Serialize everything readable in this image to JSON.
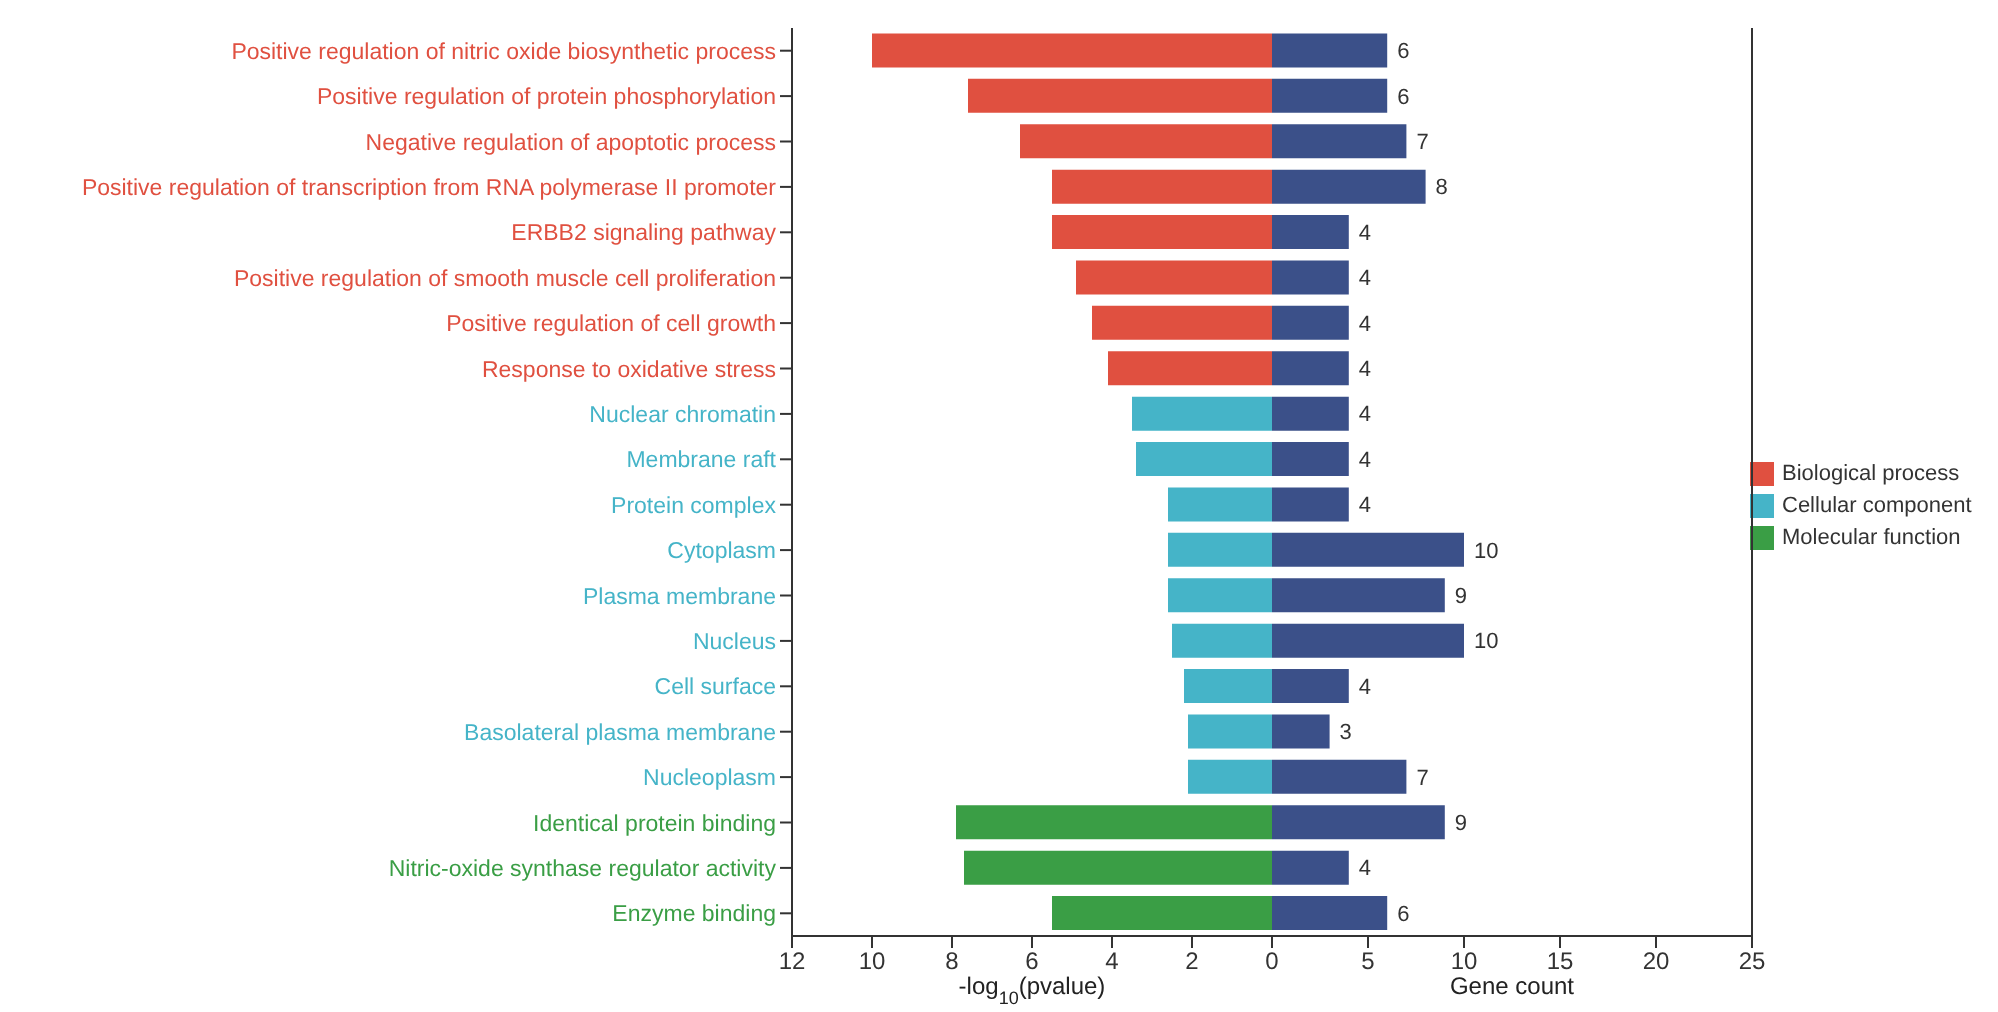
{
  "chart_data": [
    {
      "type": "bar",
      "orientation": "horizontal",
      "stacked": true,
      "xlabel": "-log$_{10}$(pvalue)",
      "xlim": [
        12,
        0
      ],
      "xticks": [
        12,
        10,
        8,
        6,
        4,
        2,
        {
          "value": 0,
          "label": null
        }
      ],
      "legend": "right",
      "categories": [
        "Positive regulation of nitric oxide biosynthetic process",
        "Positive regulation of protein phosphorylation",
        "Negative regulation of apoptotic process",
        "Positive regulation of transcription from RNA polymerase II promoter",
        "ERBB2 signaling pathway",
        "Positive regulation of smooth muscle cell proliferation",
        "Positive regulation of cell growth",
        "Response to oxidative stress",
        "Nuclear chromatin",
        "Membrane raft",
        "Protein complex",
        "Cytoplasm",
        "Plasma membrane",
        "Nucleus",
        "Cell surface",
        "Basolateral plasma membrane",
        "Nucleoplasm",
        "Identical protein binding",
        "Nitric-oxide synthase regulator activity",
        "Enzyme binding"
      ],
      "series": [
        {
          "name": "Biological process",
          "color": "#e05040",
          "values": [
            10.0,
            7.6,
            6.3,
            5.5,
            5.5,
            4.9,
            4.5,
            4.1,
            null,
            null,
            null,
            null,
            null,
            null,
            null,
            null,
            null,
            null,
            null,
            null
          ]
        },
        {
          "name": "Cellular component",
          "color": "#45b4c8",
          "values": [
            null,
            null,
            null,
            null,
            null,
            null,
            null,
            null,
            3.5,
            3.4,
            2.6,
            2.6,
            2.6,
            2.5,
            2.2,
            2.1,
            2.1,
            null,
            null,
            null
          ]
        },
        {
          "name": "Molecular function",
          "color": "#3a9e45",
          "values": [
            null,
            null,
            null,
            null,
            null,
            null,
            null,
            null,
            null,
            null,
            null,
            null,
            null,
            null,
            null,
            null,
            null,
            7.9,
            7.7,
            5.5
          ]
        }
      ]
    },
    {
      "type": "bar",
      "orientation": "horizontal",
      "xlabel": "Gene count",
      "xlim": [
        0,
        25
      ],
      "xticks": [
        0,
        5,
        10,
        15,
        20,
        25
      ],
      "tick_labels": "x",
      "data_labels": true,
      "color": "#3b5089",
      "categories": [
        null,
        null,
        null,
        null,
        null,
        null,
        null,
        null,
        null,
        null,
        null,
        null,
        null,
        null,
        null,
        null,
        null,
        null,
        null,
        null
      ],
      "values": [
        6,
        6,
        7,
        8,
        4,
        4,
        4,
        4,
        4,
        4,
        4,
        10,
        9,
        10,
        4,
        3,
        7,
        9,
        4,
        6
      ]
    }
  ]
}
